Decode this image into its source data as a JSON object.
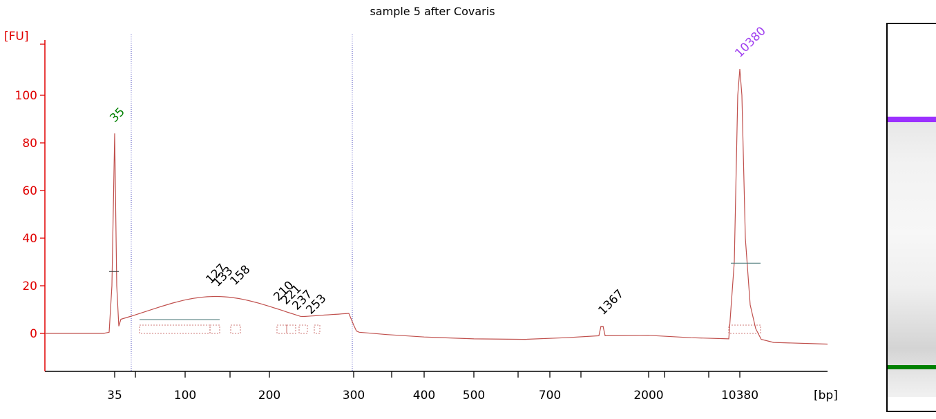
{
  "chart_data": {
    "type": "line",
    "title": "sample 5 after Covaris",
    "ylabel": "[FU]",
    "xlabel": "[bp]",
    "ylim": [
      -15,
      118
    ],
    "yticks": [
      0,
      20,
      40,
      60,
      80,
      100
    ],
    "ytick_labels": [
      "0",
      "20",
      "40",
      "60",
      "80",
      "100"
    ],
    "xtick_labels": [
      "35",
      "100",
      "200",
      "300",
      "400",
      "500",
      "700",
      "2000",
      "10380"
    ],
    "series": [
      {
        "x": [
          "35",
          "100",
          "200",
          "300",
          "400",
          "500",
          "700",
          "2000",
          "10380"
        ],
        "y": [
          84,
          14,
          10,
          1,
          -2,
          -2.5,
          -2.5,
          -1,
          111
        ]
      }
    ],
    "peak_labels": [
      {
        "label": "35",
        "value": 84
      },
      {
        "label": "127",
        "value": 16
      },
      {
        "label": "133",
        "value": 16
      },
      {
        "label": "158",
        "value": 16
      },
      {
        "label": "210",
        "value": 12
      },
      {
        "label": "221",
        "value": 11
      },
      {
        "label": "237",
        "value": 9
      },
      {
        "label": "253",
        "value": 8
      },
      {
        "label": "1367",
        "value": 3
      },
      {
        "label": "10380",
        "value": 111
      }
    ],
    "grid": false,
    "colors": {
      "trace": "#c0504d",
      "axis": "#e00000",
      "marker_low": "#008000",
      "marker_high": "#a040f0",
      "region": "#5050c0"
    }
  },
  "gel": {
    "upper_marker_color": "#9b30ff",
    "lower_marker_color": "#008000"
  }
}
